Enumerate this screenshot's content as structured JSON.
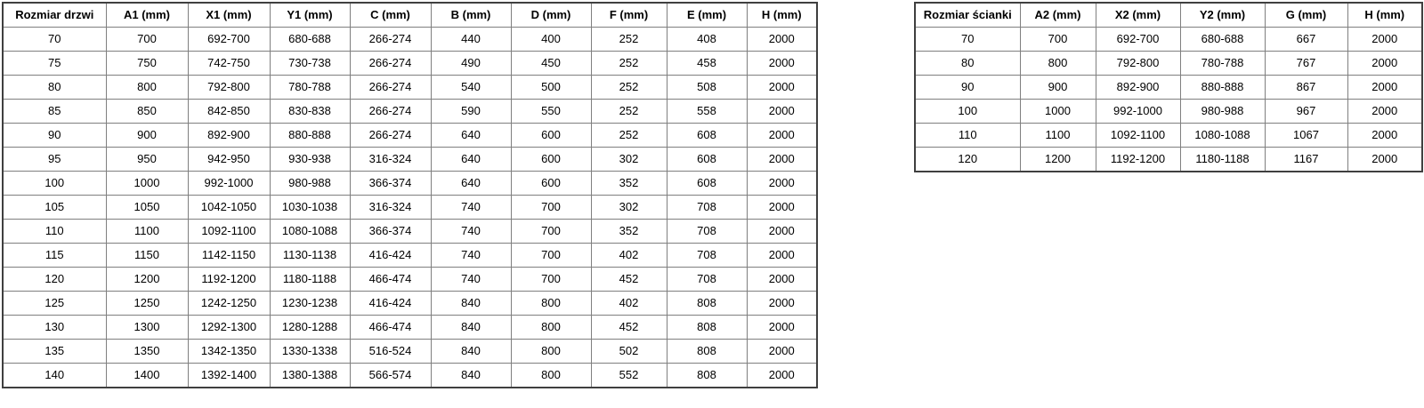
{
  "styles": {
    "background": "#ffffff",
    "text_color": "#000000",
    "inner_border_color": "#7f7f7f",
    "outer_border_color": "#3f3f3f"
  },
  "tables": [
    {
      "name": "door-dimensions-table",
      "columns": [
        "Rozmiar drzwi",
        "A1 (mm)",
        "X1 (mm)",
        "Y1 (mm)",
        "C (mm)",
        "B (mm)",
        "D (mm)",
        "F (mm)",
        "E (mm)",
        "H (mm)"
      ],
      "rows": [
        [
          "70",
          "700",
          "692-700",
          "680-688",
          "266-274",
          "440",
          "400",
          "252",
          "408",
          "2000"
        ],
        [
          "75",
          "750",
          "742-750",
          "730-738",
          "266-274",
          "490",
          "450",
          "252",
          "458",
          "2000"
        ],
        [
          "80",
          "800",
          "792-800",
          "780-788",
          "266-274",
          "540",
          "500",
          "252",
          "508",
          "2000"
        ],
        [
          "85",
          "850",
          "842-850",
          "830-838",
          "266-274",
          "590",
          "550",
          "252",
          "558",
          "2000"
        ],
        [
          "90",
          "900",
          "892-900",
          "880-888",
          "266-274",
          "640",
          "600",
          "252",
          "608",
          "2000"
        ],
        [
          "95",
          "950",
          "942-950",
          "930-938",
          "316-324",
          "640",
          "600",
          "302",
          "608",
          "2000"
        ],
        [
          "100",
          "1000",
          "992-1000",
          "980-988",
          "366-374",
          "640",
          "600",
          "352",
          "608",
          "2000"
        ],
        [
          "105",
          "1050",
          "1042-1050",
          "1030-1038",
          "316-324",
          "740",
          "700",
          "302",
          "708",
          "2000"
        ],
        [
          "110",
          "1100",
          "1092-1100",
          "1080-1088",
          "366-374",
          "740",
          "700",
          "352",
          "708",
          "2000"
        ],
        [
          "115",
          "1150",
          "1142-1150",
          "1130-1138",
          "416-424",
          "740",
          "700",
          "402",
          "708",
          "2000"
        ],
        [
          "120",
          "1200",
          "1192-1200",
          "1180-1188",
          "466-474",
          "740",
          "700",
          "452",
          "708",
          "2000"
        ],
        [
          "125",
          "1250",
          "1242-1250",
          "1230-1238",
          "416-424",
          "840",
          "800",
          "402",
          "808",
          "2000"
        ],
        [
          "130",
          "1300",
          "1292-1300",
          "1280-1288",
          "466-474",
          "840",
          "800",
          "452",
          "808",
          "2000"
        ],
        [
          "135",
          "1350",
          "1342-1350",
          "1330-1338",
          "516-524",
          "840",
          "800",
          "502",
          "808",
          "2000"
        ],
        [
          "140",
          "1400",
          "1392-1400",
          "1380-1388",
          "566-574",
          "840",
          "800",
          "552",
          "808",
          "2000"
        ]
      ]
    },
    {
      "name": "wall-dimensions-table",
      "columns": [
        "Rozmiar ścianki",
        "A2 (mm)",
        "X2 (mm)",
        "Y2 (mm)",
        "G (mm)",
        "H (mm)"
      ],
      "rows": [
        [
          "70",
          "700",
          "692-700",
          "680-688",
          "667",
          "2000"
        ],
        [
          "80",
          "800",
          "792-800",
          "780-788",
          "767",
          "2000"
        ],
        [
          "90",
          "900",
          "892-900",
          "880-888",
          "867",
          "2000"
        ],
        [
          "100",
          "1000",
          "992-1000",
          "980-988",
          "967",
          "2000"
        ],
        [
          "110",
          "1100",
          "1092-1100",
          "1080-1088",
          "1067",
          "2000"
        ],
        [
          "120",
          "1200",
          "1192-1200",
          "1180-1188",
          "1167",
          "2000"
        ]
      ]
    }
  ]
}
